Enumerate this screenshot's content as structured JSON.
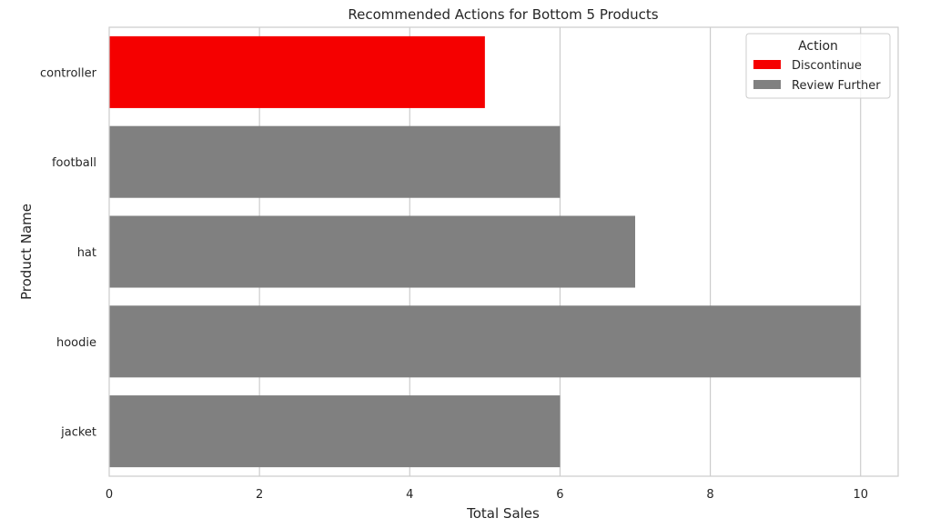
{
  "chart_data": {
    "type": "bar",
    "orientation": "horizontal",
    "title": "Recommended Actions for Bottom 5 Products",
    "xlabel": "Total Sales",
    "ylabel": "Product Name",
    "xlim": [
      0,
      10.5
    ],
    "xticks": [
      0,
      2,
      4,
      6,
      8,
      10
    ],
    "grid": "vertical",
    "categories": [
      "controller",
      "football",
      "hat",
      "hoodie",
      "jacket"
    ],
    "values": [
      5,
      6,
      7,
      10,
      6
    ],
    "actions": [
      "Discontinue",
      "Review Further",
      "Review Further",
      "Review Further",
      "Review Further"
    ],
    "legend": {
      "title": "Action",
      "placement": "top-right",
      "entries": [
        {
          "label": "Discontinue",
          "color": "#f50000"
        },
        {
          "label": "Review Further",
          "color": "#808080"
        }
      ]
    }
  }
}
